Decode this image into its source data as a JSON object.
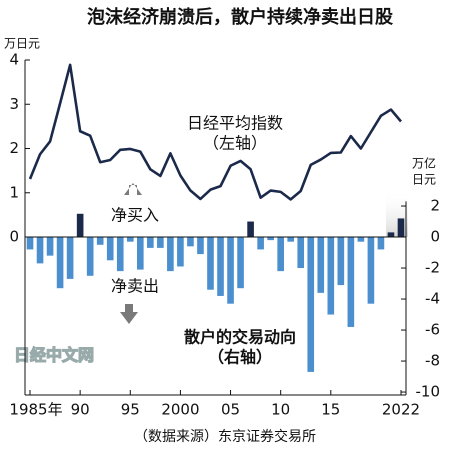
{
  "chart_data": {
    "type": "bar-line",
    "title": "泡沫经济崩溃后，散户持续净卖出日股",
    "y_unit": "万日元",
    "y2_unit": [
      "万亿",
      "日元"
    ],
    "x": [
      1985,
      1986,
      1987,
      1988,
      1989,
      1990,
      1991,
      1992,
      1993,
      1994,
      1995,
      1996,
      1997,
      1998,
      1999,
      2000,
      2001,
      2002,
      2003,
      2004,
      2005,
      2006,
      2007,
      2008,
      2009,
      2010,
      2011,
      2012,
      2013,
      2014,
      2015,
      2016,
      2017,
      2018,
      2019,
      2020,
      2021,
      2022
    ],
    "xlim": [
      1984.5,
      2022.5
    ],
    "xticks": [
      {
        "value": 1985,
        "label": "1985年"
      },
      {
        "value": 1990,
        "label": "90"
      },
      {
        "value": 1995,
        "label": "95"
      },
      2000,
      {
        "value": 2005,
        "label": "05"
      },
      {
        "value": 2010,
        "label": "10"
      },
      {
        "value": 2015,
        "label": "15"
      },
      2022
    ],
    "ylim": [
      -3.57,
      4.0
    ],
    "yticks": [
      0,
      1,
      2,
      3,
      4
    ],
    "y2lim": [
      -10.19,
      11.42
    ],
    "y2ticks": [
      2,
      0,
      -2,
      -4,
      -6,
      -8,
      -10
    ],
    "series": [
      {
        "name": "日经平均指数",
        "type": "line",
        "color": "#1b2a4a",
        "values": [
          1.31,
          1.87,
          2.16,
          3.02,
          3.89,
          2.39,
          2.29,
          1.69,
          1.74,
          1.97,
          1.99,
          1.93,
          1.53,
          1.38,
          1.89,
          1.39,
          1.05,
          0.86,
          1.07,
          1.15,
          1.61,
          1.72,
          1.53,
          0.89,
          1.05,
          1.02,
          0.85,
          1.04,
          1.63,
          1.75,
          1.9,
          1.91,
          2.28,
          2.0,
          2.37,
          2.74,
          2.88,
          2.61
        ]
      },
      {
        "name": "散户的交易动向",
        "type": "bar",
        "axis": "y2",
        "color": "#4b8fcf",
        "positive_color": "#1b2a4a",
        "values": [
          -0.8,
          -1.7,
          -1.2,
          -3.3,
          -2.7,
          1.5,
          -2.5,
          -0.5,
          -1.5,
          -2.2,
          -0.3,
          -2.1,
          -0.7,
          -0.7,
          -2.2,
          -1.9,
          -0.6,
          -1.1,
          -3.4,
          -3.8,
          -4.3,
          -3.3,
          1.0,
          -0.8,
          -0.2,
          -2.2,
          -0.3,
          -2.0,
          -8.7,
          -3.6,
          -5.0,
          -3.1,
          -5.8,
          -0.3,
          -4.3,
          -0.8,
          0.3,
          1.2
        ]
      }
    ],
    "annotations": [
      "日经平均指数",
      "（左轴）",
      "净买入",
      "净卖出",
      "散户的交易动向",
      "（右轴）"
    ],
    "watermark": "日经中文网",
    "source": "（数据来源）东京证券交易所"
  }
}
